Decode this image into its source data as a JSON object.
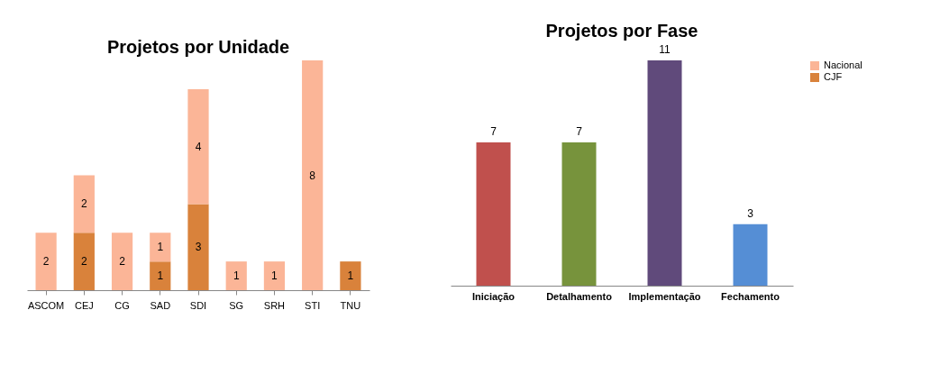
{
  "chart_data": [
    {
      "type": "bar",
      "title": "Projetos por Unidade",
      "stacked": true,
      "data_labels": true,
      "legend": "right",
      "categories": [
        "ASCOM",
        "CEJ",
        "CG",
        "SAD",
        "SDI",
        "SG",
        "SRH",
        "STI",
        "TNU"
      ],
      "series": [
        {
          "name": "CJF",
          "color": "#d9823b",
          "values": [
            null,
            2,
            null,
            1,
            3,
            null,
            null,
            null,
            1
          ]
        },
        {
          "name": "Nacional",
          "color": "#fbb597",
          "values": [
            2,
            2,
            2,
            1,
            4,
            1,
            1,
            8,
            null
          ]
        }
      ]
    },
    {
      "type": "bar",
      "title": "Projetos por Fase",
      "data_labels": true,
      "categories": [
        "Iniciação",
        "Detalhamento",
        "Implementação",
        "Fechamento"
      ],
      "values": [
        7,
        7,
        11,
        3
      ],
      "colors": [
        "#c0504d",
        "#77933c",
        "#604a7b",
        "#558ed5"
      ]
    }
  ]
}
